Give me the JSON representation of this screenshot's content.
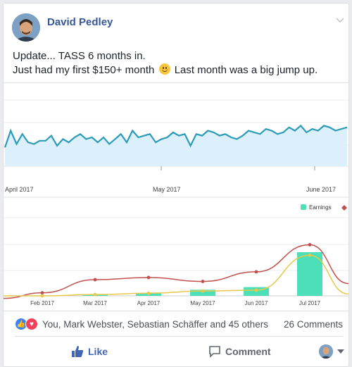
{
  "post": {
    "author": "David Pedley",
    "line1": "Update... TASS 6 months in.",
    "line2_before": "Just had my first $150+ month",
    "line2_after": "Last month was a big jump up.",
    "emoji": "smiling-face-icon"
  },
  "chart_data": [
    {
      "type": "area",
      "x_tick_labels": [
        "April 2017",
        "May 2017",
        "June 2017"
      ],
      "series": [
        {
          "values": [
            2,
            12,
            4,
            10,
            5,
            4,
            6,
            6,
            9,
            3,
            7,
            5,
            8,
            10,
            7,
            8,
            5,
            8,
            4,
            7,
            10,
            5,
            12,
            8,
            9,
            10,
            5,
            7,
            8,
            11,
            9,
            10,
            3,
            10,
            9,
            12,
            11,
            9,
            10,
            8,
            7,
            9,
            12,
            11,
            10,
            13,
            12,
            10,
            11,
            14,
            12,
            15,
            11,
            13,
            12,
            15,
            14,
            12,
            13,
            14
          ]
        }
      ],
      "color": "#2b9bb8",
      "fill": "#dcf0fb"
    },
    {
      "type": "bar",
      "categories": [
        "Feb 2017",
        "Mar 2017",
        "Apr 2017",
        "May 2017",
        "Jun 2017",
        "Jul 2017"
      ],
      "legend": "Earnings",
      "values": [
        1,
        3,
        6,
        14,
        20,
        100
      ],
      "lines": [
        {
          "color": "#c0504d",
          "values": [
            7,
            37,
            42,
            33,
            55,
            117
          ]
        },
        {
          "color": "#e8c84a",
          "values": [
            0,
            3,
            6,
            11,
            13,
            93
          ]
        }
      ],
      "bar_color": "#4de0b8"
    }
  ],
  "stats": {
    "names": "You, Mark Webster, Sebastian Schäffer and 45 others",
    "comments": "26 Comments"
  },
  "actions": {
    "like": "Like",
    "comment": "Comment"
  },
  "colors": {
    "link": "#365899",
    "like": "#4267b2"
  }
}
